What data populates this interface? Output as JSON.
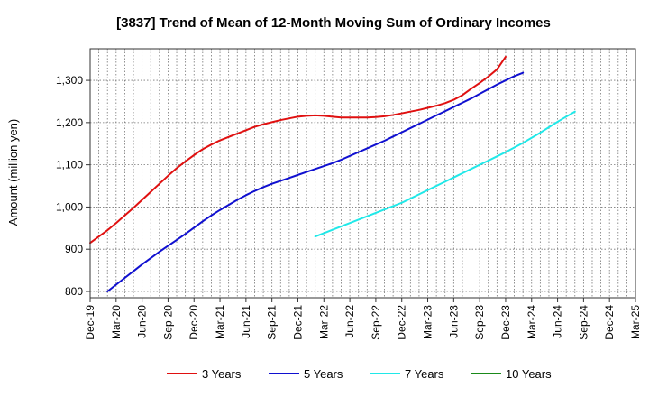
{
  "chart_data": {
    "type": "line",
    "title": "[3837]  Trend of Mean of 12-Month Moving Sum of Ordinary Incomes",
    "xlabel": "",
    "ylabel": "Amount (million yen)",
    "ylim": [
      785,
      1375
    ],
    "y_ticks": [
      800,
      900,
      1000,
      1100,
      1200,
      1300
    ],
    "y_tick_labels": [
      "800",
      "900",
      "1,000",
      "1,100",
      "1,200",
      "1,300"
    ],
    "x_ticks": [
      "Dec-19",
      "Mar-20",
      "Jun-20",
      "Sep-20",
      "Dec-20",
      "Mar-21",
      "Jun-21",
      "Sep-21",
      "Dec-21",
      "Mar-22",
      "Jun-22",
      "Sep-22",
      "Dec-22",
      "Mar-23",
      "Jun-23",
      "Sep-23",
      "Dec-23",
      "Mar-24",
      "Jun-24",
      "Sep-24",
      "Dec-24",
      "Mar-25"
    ],
    "grid": true,
    "legend_position": "bottom",
    "series": [
      {
        "name": "3 Years",
        "color": "#e01010",
        "start_index": 0,
        "values": [
          915,
          930,
          945,
          962,
          980,
          998,
          1017,
          1036,
          1055,
          1074,
          1092,
          1108,
          1123,
          1137,
          1148,
          1158,
          1166,
          1174,
          1182,
          1190,
          1196,
          1201,
          1206,
          1210,
          1214,
          1216,
          1217,
          1216,
          1214,
          1212,
          1212,
          1212,
          1212,
          1213,
          1215,
          1218,
          1222,
          1226,
          1230,
          1235,
          1240,
          1246,
          1254,
          1265,
          1280,
          1294,
          1309,
          1326,
          1356
        ]
      },
      {
        "name": "5 Years",
        "color": "#1010d0",
        "start_index": 2,
        "values": [
          800,
          816,
          832,
          848,
          864,
          879,
          894,
          908,
          922,
          936,
          951,
          966,
          980,
          993,
          1005,
          1017,
          1028,
          1038,
          1047,
          1055,
          1062,
          1069,
          1076,
          1083,
          1090,
          1097,
          1104,
          1112,
          1121,
          1130,
          1139,
          1148,
          1157,
          1167,
          1177,
          1187,
          1197,
          1207,
          1217,
          1227,
          1237,
          1247,
          1257,
          1268,
          1279,
          1290,
          1300,
          1310,
          1318
        ]
      },
      {
        "name": "7 Years",
        "color": "#20e8e8",
        "start_index": 26,
        "values": [
          930,
          938,
          946,
          954,
          962,
          970,
          978,
          986,
          994,
          1002,
          1010,
          1020,
          1030,
          1040,
          1050,
          1060,
          1070,
          1080,
          1090,
          1100,
          1110,
          1120,
          1130,
          1141,
          1152,
          1164,
          1176,
          1189,
          1202,
          1214,
          1226
        ]
      },
      {
        "name": "10 Years",
        "color": "#1a8a1a",
        "start_index": 0,
        "values": []
      }
    ]
  }
}
